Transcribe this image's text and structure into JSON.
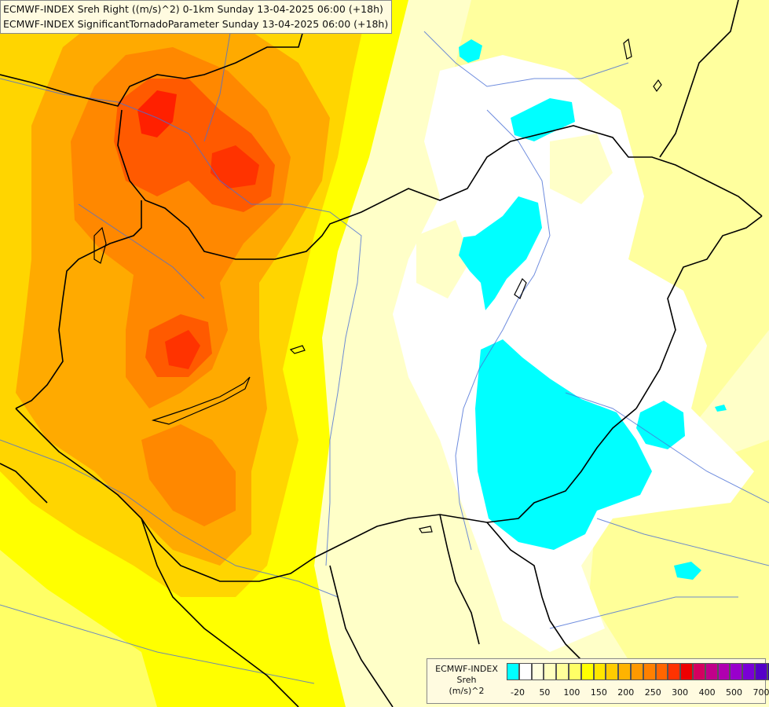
{
  "title_lines": [
    "ECMWF-INDEX Sreh Right ((m/s)^2) 0-1km Sunday 13-04-2025 06:00 (+18h)",
    "ECMWF-INDEX SignificantTornadoParameter Sunday 13-04-2025 06:00 (+18h)"
  ],
  "legend": {
    "label_lines": [
      "ECMWF-INDEX",
      "Sreh",
      "(m/s)^2"
    ],
    "colors": [
      "#00ffff",
      "#ffffff",
      "#ffffe0",
      "#ffffc0",
      "#ffff9a",
      "#ffff66",
      "#ffff00",
      "#ffe600",
      "#ffcc00",
      "#ffb300",
      "#ff9900",
      "#ff8000",
      "#ff6600",
      "#ff3300",
      "#ee0000",
      "#d40060",
      "#c0008a",
      "#b000b0",
      "#9900cc",
      "#7a00d6",
      "#5500c8",
      "#3300a8",
      "#000090"
    ],
    "ticks": [
      "-20",
      "50",
      "100",
      "150",
      "200",
      "250",
      "300",
      "400",
      "500",
      "700"
    ]
  },
  "field_colors": {
    "cyan": "#00ffff",
    "white": "#ffffff",
    "pale": "#ffffc8",
    "light_yellow": "#ffff99",
    "yellow": "#ffff00",
    "gold": "#ffd500",
    "orange": "#ffaa00",
    "dark_orange": "#ff8800",
    "red_orange": "#ff5a00",
    "red": "#ff2000"
  }
}
